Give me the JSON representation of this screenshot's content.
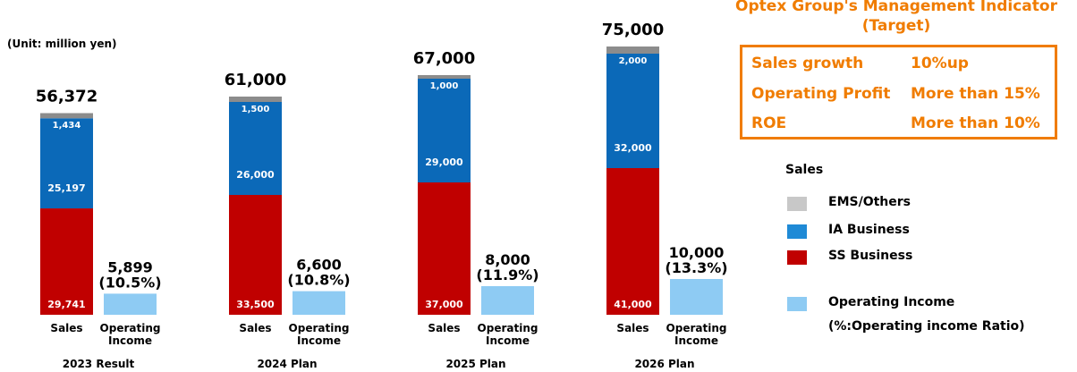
{
  "unit_label": "(Unit: million yen)",
  "indicator": {
    "title_lines": [
      "Optex Group's Management Indicator",
      "(Target)"
    ],
    "rows": [
      {
        "name": "Sales growth",
        "value": "10%up"
      },
      {
        "name": "Operating Profit",
        "value": "More than 15%"
      },
      {
        "name": "ROE",
        "value": "More than 10%"
      }
    ]
  },
  "legend": {
    "title": "Sales",
    "items": [
      {
        "label": "EMS/Others",
        "color": "#c8c8c8"
      },
      {
        "label": "IA Business",
        "color": "#1f8ad6"
      },
      {
        "label": "SS Business",
        "color": "#c00000"
      },
      {
        "label": "Operating Income",
        "color": "#8ecbf3"
      }
    ],
    "note": "(%:Operating income Ratio)"
  },
  "chart_data": {
    "type": "bar",
    "stacked": true,
    "groups": [
      "2023 Result",
      "2024 Plan",
      "2025 Plan",
      "2026 Plan"
    ],
    "bar_labels": [
      "Sales",
      "Operating Income"
    ],
    "series": [
      {
        "name": "SS Business",
        "stack": "Sales",
        "values": [
          29741,
          33500,
          37000,
          41000
        ]
      },
      {
        "name": "IA Business",
        "stack": "Sales",
        "values": [
          25197,
          26000,
          29000,
          32000
        ]
      },
      {
        "name": "EMS/Others",
        "stack": "Sales",
        "values": [
          1434,
          1500,
          1000,
          2000
        ]
      },
      {
        "name": "Operating Income",
        "stack": "Operating Income",
        "values": [
          5899,
          6600,
          8000,
          10000
        ]
      }
    ],
    "sales_totals": [
      56372,
      61000,
      67000,
      75000
    ],
    "sales_total_labels": [
      "56,372",
      "61,000",
      "67,000",
      "75,000"
    ],
    "operating_income_labels": [
      "5,899",
      "6,600",
      "8,000",
      "10,000"
    ],
    "operating_income_ratio_labels": [
      "(10.5%)",
      "(10.8%)",
      "(11.9%)",
      "(13.3%)"
    ],
    "segment_labels": {
      "SS Business": [
        "29,741",
        "33,500",
        "37,000",
        "41,000"
      ],
      "IA Business": [
        "25,197",
        "26,000",
        "29,000",
        "32,000"
      ],
      "EMS/Others": [
        "1,434",
        "1,500",
        "1,000",
        "2,000"
      ]
    },
    "colors": {
      "SS Business": "#c00000",
      "IA Business": "#0b69b8",
      "EMS/Others": "#8c8c8c",
      "Operating Income": "#8ecbf3"
    }
  }
}
